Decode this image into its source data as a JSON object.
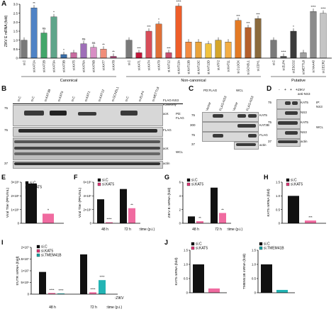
{
  "panels": {
    "A": {
      "letter": "A",
      "ylabel": "ZIKV E mRNA (fold)",
      "groups": [
        "Canonical",
        "Non-canonical",
        "Putative"
      ],
      "ticks": [
        "0",
        "0.5",
        "1.0",
        "1.5",
        "2.0",
        "2.5",
        "3.0"
      ],
      "categories": [
        "si.C",
        "si.KAT2A",
        "si.KAT2B",
        "si.KAT3A",
        "si.KAT3B",
        "si.KAT5",
        "si.KAT6A",
        "si.KAT6B",
        "si.KAT7",
        "si.KAT8",
        "si.C",
        "si.KAT1",
        "si.KAT4",
        "si.KAT9",
        "si.KAT12",
        "si.KAT13A",
        "si.KAT13B",
        "si.KAT13C",
        "si.KAT13D",
        "si.ATF2",
        "si.KAT11",
        "si.CLOCK",
        "si.GCN5L1",
        "si.CDYL",
        "si.C",
        "si.ELP4",
        "si.ESCO2",
        "si.METTL8",
        "si.NAA40",
        "si.CECR2"
      ],
      "values": [
        1.0,
        2.8,
        1.4,
        2.3,
        0.2,
        0.3,
        0.8,
        0.6,
        0.5,
        0.1,
        1.0,
        0.3,
        1.5,
        1.9,
        0.3,
        2.9,
        0.9,
        0.9,
        0.8,
        1.0,
        0.9,
        2.1,
        1.7,
        2.2,
        1.0,
        0.1,
        1.5,
        0.3,
        2.6,
        2.5
      ],
      "marks": [
        "",
        "**",
        "ns",
        "*",
        "*",
        "",
        "ns",
        "ns",
        "**",
        "**",
        "",
        "***",
        "***",
        "*",
        "***",
        "****",
        "",
        "",
        "",
        "",
        "",
        "***",
        "***",
        "***",
        "",
        "****",
        "*",
        "",
        "****",
        "****"
      ],
      "colors": [
        "#7a7a7a",
        "#4f83c5",
        "#43a66a",
        "#5fa58a",
        "#3a6ea8",
        "#c86ca0",
        "#9e6fb8",
        "#d78fc4",
        "#f08e7a",
        "#b34d7d",
        "#7a7a7a",
        "#c3163a",
        "#d84d5a",
        "#e06f37",
        "#c94d6c",
        "#ee5d29",
        "#f28b42",
        "#e9a33b",
        "#f0c23e",
        "#d4a62b",
        "#f3ae45",
        "#e37a24",
        "#b55f2c",
        "#8a6a3d",
        "#7a7a7a",
        "#5b5b5b",
        "#3b3b3b",
        "#a0a0a0",
        "#8b8b8b",
        "#c5c5c5"
      ]
    },
    "B": {
      "letter": "B",
      "lanes_top": [
        "si.C",
        "si.C",
        "si.KAT3B",
        "si.KAT5",
        "si.C",
        "si.KAT1",
        "si.KAT12",
        "si.GCN5L1",
        "si.C",
        "si.ELP4",
        "si.METTL8"
      ],
      "right_labels": [
        "FLAG-NS3",
        "K389only",
        "acK",
        "FLAG",
        "acK",
        "actin"
      ],
      "side_labels": [
        "PD:",
        "FLAG",
        "WCL"
      ],
      "mw": [
        "75",
        "75",
        "37"
      ]
    },
    "C": {
      "letter": "C",
      "head": [
        "PD:FLAG",
        "WCL"
      ],
      "lanes": [
        "Vector",
        "FLAG-NS3",
        "Vector",
        "FLAG-NS3"
      ],
      "labels": [
        "KAT5",
        "KAT3B",
        "FLAG",
        "actin"
      ],
      "mw": [
        "75",
        "300",
        "75",
        "37"
      ]
    },
    "D": {
      "letter": "D",
      "zikv": "ZIKV",
      "ip": "anti-NS3",
      "signs": [
        "-",
        "+",
        "+",
        "+"
      ],
      "labels": [
        "KAT5",
        "NS3",
        "KAT5",
        "NS3",
        "actin"
      ],
      "side": [
        "IP:",
        "NS3",
        "WCL"
      ],
      "mw": [
        "75",
        "75",
        "37"
      ]
    },
    "E": {
      "letter": "E",
      "ylabel": "Viral Titer (PFU/mL)",
      "legend": [
        "si.C",
        "si.KAT5"
      ],
      "ticks": [
        "0",
        "1×10⁶",
        "2×10⁶",
        "3×10⁶"
      ],
      "chart_data": {
        "type": "bar",
        "categories": [
          "si.C",
          "si.KAT5"
        ],
        "values": [
          2900000,
          700000
        ]
      },
      "mark": "*"
    },
    "F": {
      "letter": "F",
      "ylabel": "Viral Titer (PFU/mL)",
      "legend": [
        "si.C",
        "si.KAT5"
      ],
      "ticks": [
        "0",
        "2×10⁶",
        "4×10⁶",
        "6×10⁶"
      ],
      "xlabels": [
        "48 h",
        "72 h",
        ":time (p.i.)"
      ],
      "chart_data": {
        "type": "bar",
        "categories": [
          "48 h",
          "72 h"
        ],
        "series": [
          {
            "name": "si.C",
            "values": [
              3500000,
              5000000
            ]
          },
          {
            "name": "si.KAT5",
            "values": [
              150000,
              2200000
            ]
          }
        ]
      },
      "marks": [
        "****",
        "**"
      ]
    },
    "G": {
      "letter": "G",
      "ylabel": "ZIKV E mRNA (fold)",
      "legend": [
        "si.C",
        "si.KAT5"
      ],
      "ticks": [
        "0",
        "2",
        "4",
        "6"
      ],
      "xlabels": [
        "48 h",
        "72 h",
        ":time (p.i.)"
      ],
      "chart_data": {
        "type": "bar",
        "categories": [
          "48 h",
          "72 h"
        ],
        "series": [
          {
            "name": "si.C",
            "values": [
              1.0,
              5.2
            ]
          },
          {
            "name": "si.KAT5",
            "values": [
              0.3,
              1.5
            ]
          }
        ]
      },
      "marks": [
        "**",
        "**"
      ]
    },
    "H": {
      "letter": "H",
      "ylabel": "KAT5 mRNA (fold)",
      "legend": [
        "si.C",
        "si.KAT5"
      ],
      "ticks": [
        "0",
        "0.5",
        "1.0",
        "1.5"
      ],
      "chart_data": {
        "type": "bar",
        "categories": [
          "si.C",
          "si.KAT5"
        ],
        "values": [
          1.0,
          0.1
        ]
      },
      "mark": "***"
    },
    "I": {
      "letter": "I",
      "ylabel": "5'UTR mRNA (fold)",
      "legend": [
        "si.C",
        "si.KAT5",
        "si.TMEM41B"
      ],
      "ticks": [
        "0",
        "5×10⁶",
        "1×10⁷",
        "1.5×10⁷",
        "2×10⁷"
      ],
      "zikv": ":ZIKV",
      "xlabels": [
        "48 h",
        "72 h",
        ":time (p.i.)"
      ],
      "chart_data": {
        "type": "bar",
        "categories": [
          "48 h",
          "72 h"
        ],
        "series": [
          {
            "name": "si.C",
            "values": [
              9500000,
              17000000
            ]
          },
          {
            "name": "si.KAT5",
            "values": [
              500000,
              800000
            ]
          },
          {
            "name": "si.TMEM41B",
            "values": [
              300000,
              6000000
            ]
          }
        ]
      },
      "marks": [
        "****",
        "****",
        "****",
        "****"
      ]
    },
    "J": {
      "letter": "J",
      "legend1": [
        "si.C",
        "si.KAT5"
      ],
      "legend2": [
        "si.C",
        "si.TMEM41B"
      ],
      "ylabel1": "KAT5 mRNA (fold)",
      "ylabel2": "TMEM41B mRNA (fold)",
      "ticks": [
        "0",
        "0.5",
        "1.0",
        "1.5"
      ],
      "chart_data": [
        {
          "type": "bar",
          "categories": [
            "si.C",
            "si.KAT5"
          ],
          "values": [
            1.0,
            0.15
          ]
        },
        {
          "type": "bar",
          "categories": [
            "si.C",
            "si.TMEM41B"
          ],
          "values": [
            1.0,
            0.1
          ]
        }
      ]
    }
  }
}
